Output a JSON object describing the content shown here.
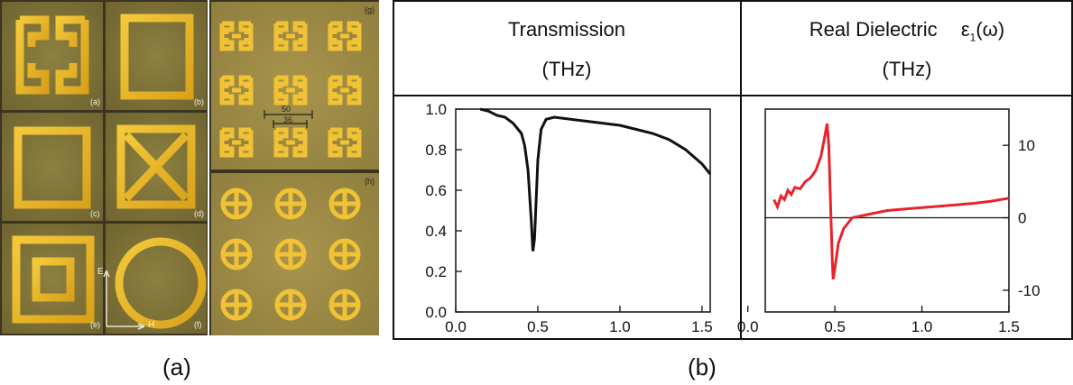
{
  "panel_a": {
    "tiles": [
      {
        "label": "(a)"
      },
      {
        "label": "(b)"
      },
      {
        "label": "(c)"
      },
      {
        "label": "(d)"
      },
      {
        "label": "(e)"
      },
      {
        "label": "(f)"
      },
      {
        "label": "(g)"
      },
      {
        "label": "(h)"
      }
    ],
    "axis_e": "E",
    "axis_h": "H",
    "dim_outer": "50",
    "dim_inner": "36"
  },
  "captions": {
    "a": "(a)",
    "b": "(b)"
  },
  "table_b": {
    "col1_title": "Transmission",
    "col1_unit": "(THz)",
    "col2_title": "Real Dielectric",
    "col2_symbol": "ε",
    "col2_sub": "1",
    "col2_arg": "(ω)",
    "col2_unit": "(THz)"
  },
  "colors": {
    "curve_transmission": "#111111",
    "curve_dielectric": "#e8232a",
    "gold": "#e7b521",
    "olive_bg": "#8a7a3c"
  },
  "chart_data": [
    {
      "type": "line",
      "xlim": [
        0.0,
        1.55
      ],
      "ylim": [
        0.0,
        1.0
      ],
      "xticks": [
        "0.0",
        "0.5",
        "1.0",
        "1.5"
      ],
      "yticks": [
        "0.0",
        "0.2",
        "0.4",
        "0.6",
        "0.8",
        "1.0"
      ],
      "series": [
        {
          "x": [
            0.15,
            0.2,
            0.25,
            0.3,
            0.35,
            0.4,
            0.42,
            0.44,
            0.46,
            0.47,
            0.48,
            0.5,
            0.52,
            0.55,
            0.6,
            0.7,
            0.8,
            0.9,
            1.0,
            1.1,
            1.2,
            1.3,
            1.4,
            1.5,
            1.55
          ],
          "y": [
            1.0,
            0.99,
            0.97,
            0.96,
            0.93,
            0.88,
            0.82,
            0.7,
            0.45,
            0.3,
            0.36,
            0.75,
            0.9,
            0.95,
            0.96,
            0.95,
            0.94,
            0.93,
            0.92,
            0.9,
            0.88,
            0.85,
            0.8,
            0.73,
            0.68
          ]
        }
      ]
    },
    {
      "type": "line",
      "xlim": [
        0.1,
        1.5
      ],
      "ylim": [
        -13,
        15
      ],
      "xticks": [
        "0.0",
        "0.5",
        "1.0",
        "1.5"
      ],
      "yticks": [
        "10",
        "0",
        "-10"
      ],
      "hline": 0,
      "series": [
        {
          "x": [
            0.15,
            0.17,
            0.19,
            0.21,
            0.23,
            0.25,
            0.27,
            0.3,
            0.33,
            0.36,
            0.39,
            0.42,
            0.44,
            0.455,
            0.465,
            0.475,
            0.485,
            0.49,
            0.5,
            0.52,
            0.55,
            0.6,
            0.7,
            0.8,
            0.9,
            1.0,
            1.1,
            1.2,
            1.3,
            1.4,
            1.5
          ],
          "y": [
            2.5,
            1.5,
            3.0,
            2.5,
            3.8,
            3.2,
            4.2,
            4.0,
            5.0,
            5.5,
            6.5,
            8.5,
            11.0,
            13.0,
            10.0,
            2.0,
            -6.0,
            -8.5,
            -7.0,
            -3.5,
            -1.5,
            0.0,
            0.5,
            1.0,
            1.2,
            1.4,
            1.6,
            1.8,
            2.0,
            2.3,
            2.7
          ]
        }
      ]
    }
  ]
}
